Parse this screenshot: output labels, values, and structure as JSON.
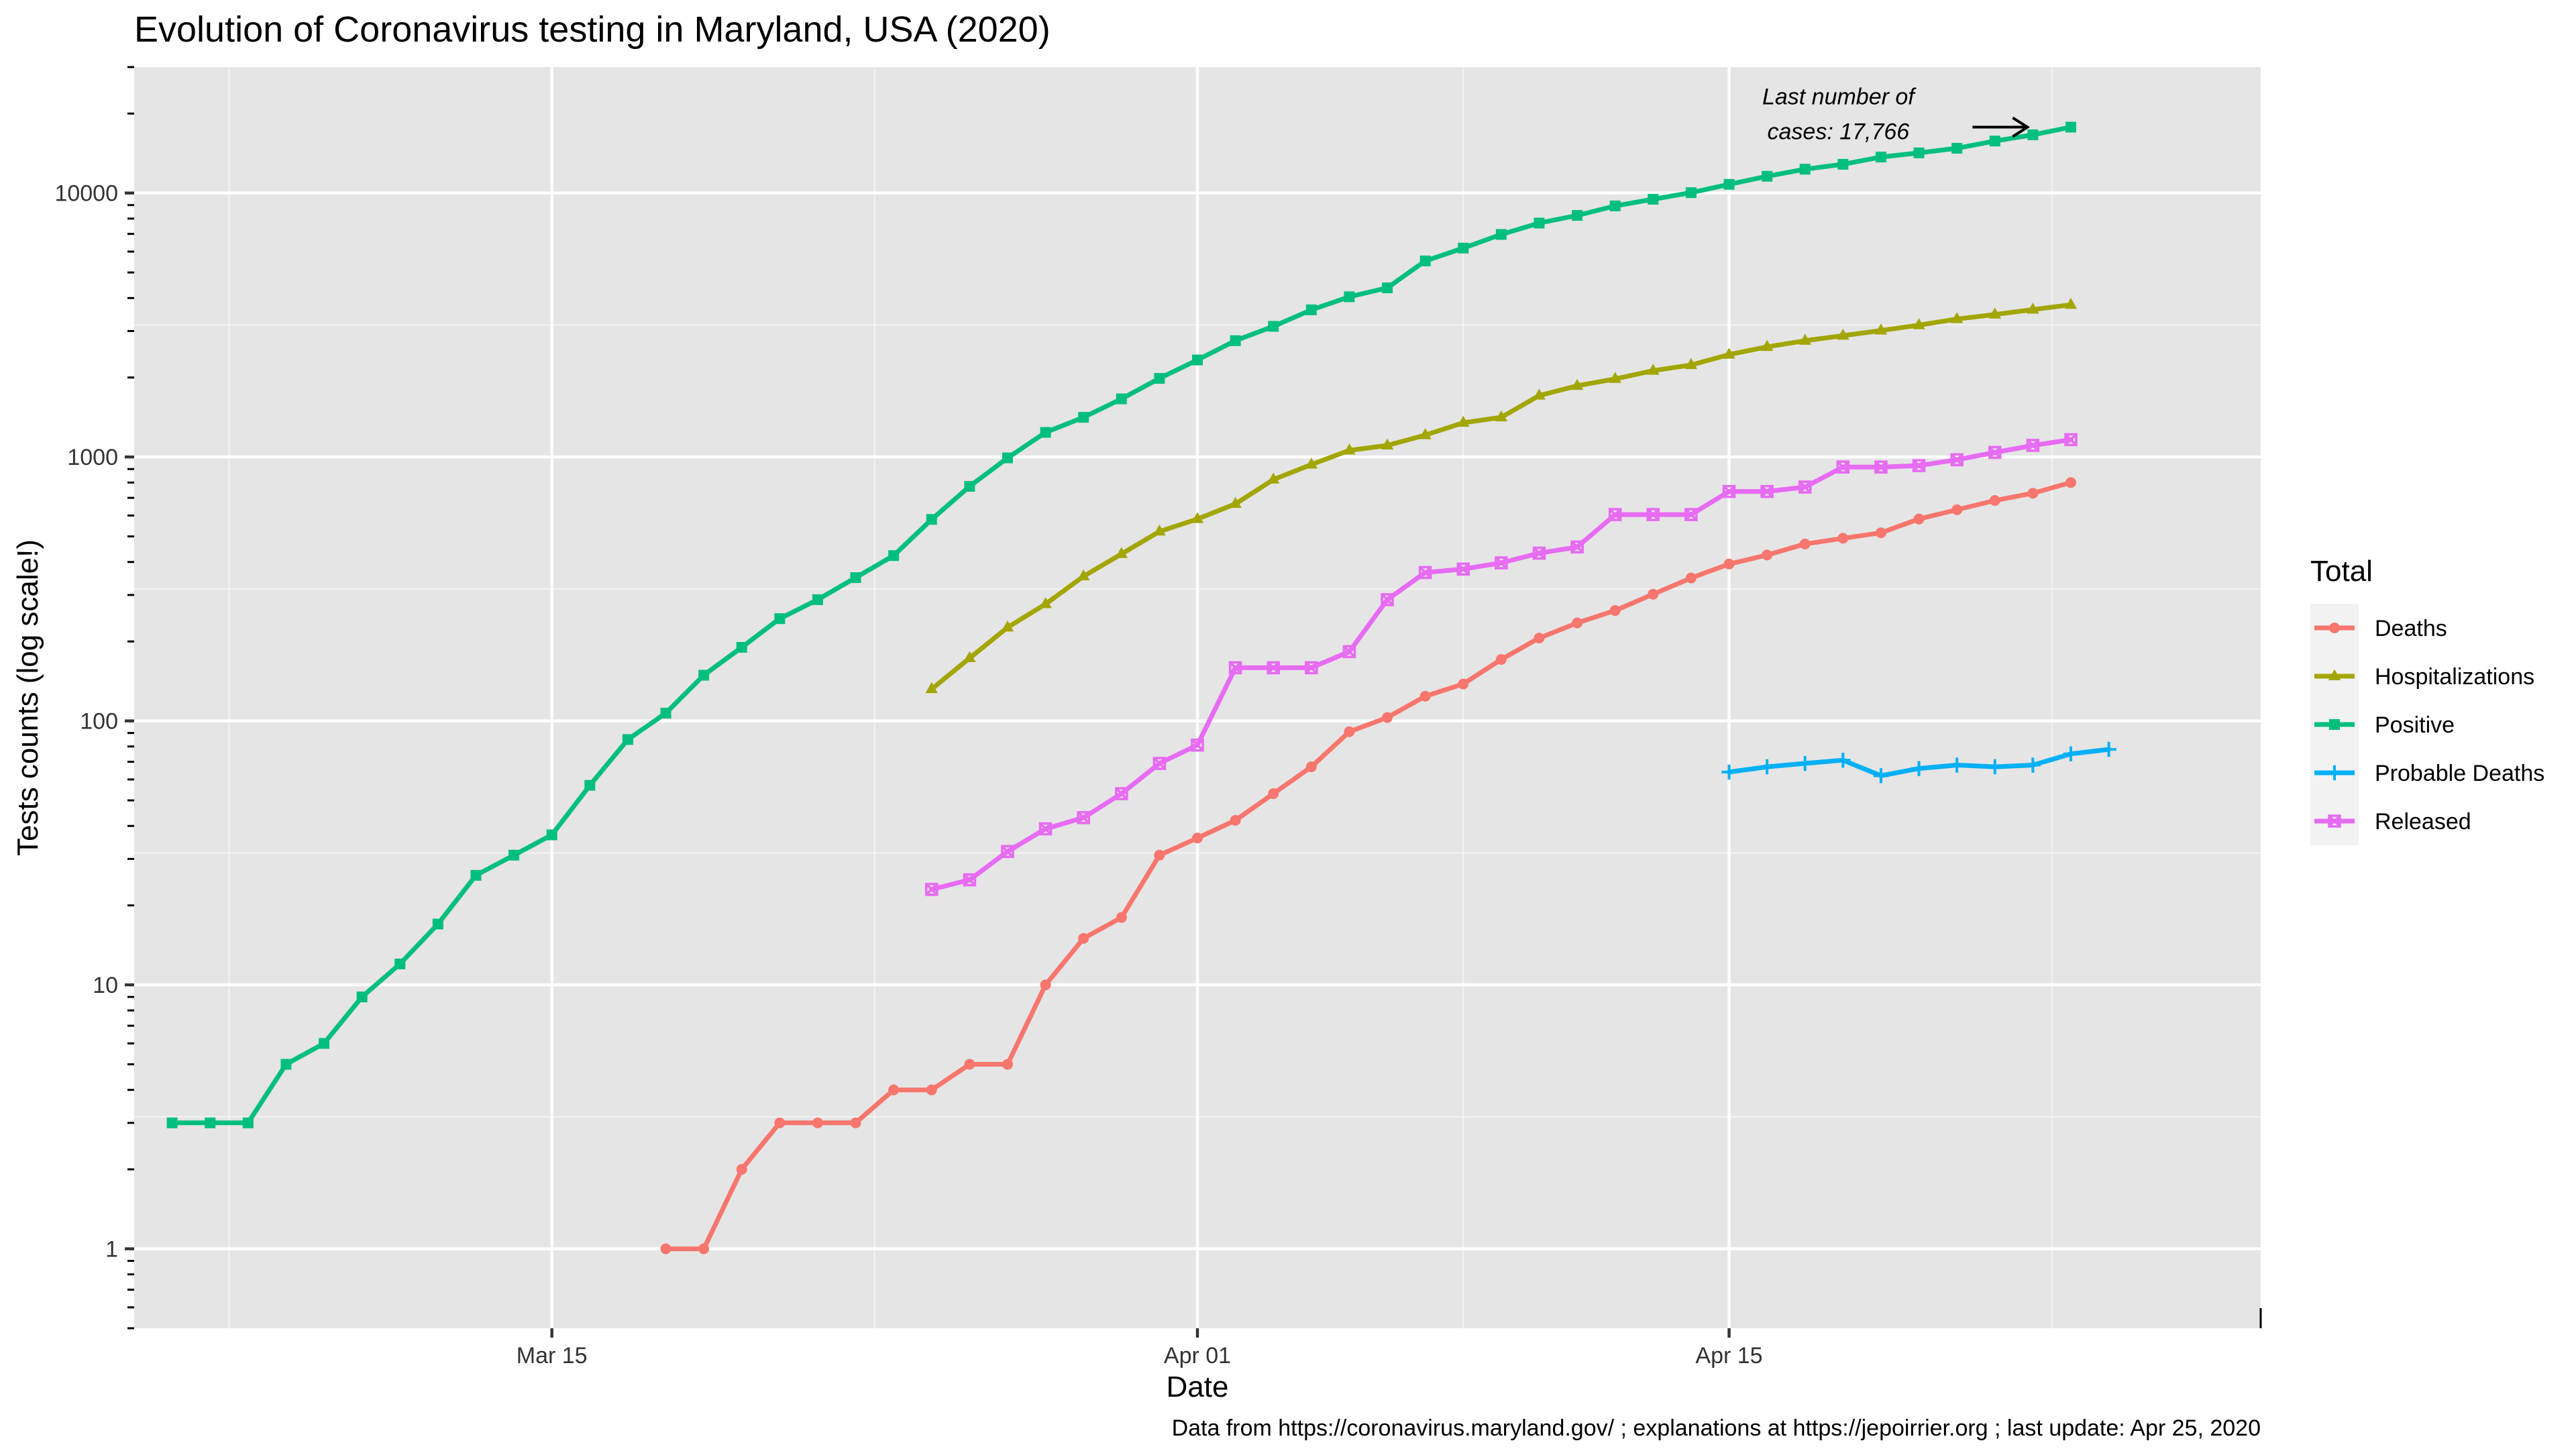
{
  "chart_data": {
    "type": "line",
    "title": "Evolution of Coronavirus testing in Maryland, USA (2020)",
    "xlabel": "Date",
    "ylabel": "Tests counts  (log scale!)",
    "caption": "Data from https://coronavirus.maryland.gov/ ; explanations at https://jepoirrier.org ; last update: Apr 25, 2020",
    "y_scale": "log10",
    "ylim": [
      0.5,
      30000
    ],
    "xlim": [
      "2020-03-04",
      "2020-04-29"
    ],
    "x_ticks": [
      {
        "date": "2020-03-15",
        "label": "Mar 15"
      },
      {
        "date": "2020-04-01",
        "label": "Apr 01"
      },
      {
        "date": "2020-04-15",
        "label": "Apr 15"
      }
    ],
    "y_ticks": [
      {
        "value": 1,
        "label": "1"
      },
      {
        "value": 10,
        "label": "10"
      },
      {
        "value": 100,
        "label": "100"
      },
      {
        "value": 1000,
        "label": "1000"
      },
      {
        "value": 10000,
        "label": "10000"
      }
    ],
    "grid": true,
    "legend": {
      "title": "Total",
      "position": "right",
      "entries": [
        "Deaths",
        "Hospitalizations",
        "Positive",
        "Probable Deaths",
        "Released"
      ]
    },
    "annotation": {
      "lines": [
        "Last number of",
        "cases: 17,766"
      ],
      "arrow_to_date": "2020-04-23",
      "arrow_value": 17766
    },
    "series": [
      {
        "name": "Deaths",
        "color": "#F8766D",
        "shape": "circle",
        "start": "2020-03-18",
        "values": [
          1,
          1,
          2,
          3,
          3,
          3,
          4,
          4,
          5,
          5,
          10,
          15,
          18,
          31,
          36,
          42,
          53,
          67,
          91,
          103,
          124,
          138,
          171,
          206,
          235,
          262,
          302,
          348,
          393,
          425,
          468,
          492,
          516,
          582,
          631,
          684,
          729,
          800
        ]
      },
      {
        "name": "Hospitalizations",
        "color": "#A3A500",
        "shape": "triangle",
        "start": "2020-03-25",
        "values": [
          132,
          173,
          226,
          277,
          353,
          429,
          522,
          582,
          664,
          821,
          936,
          1059,
          1106,
          1210,
          1348,
          1413,
          1709,
          1860,
          1976,
          2122,
          2230,
          2442,
          2612,
          2757,
          2881,
          3014,
          3157,
          3330,
          3466,
          3616,
          3772
        ]
      },
      {
        "name": "Positive",
        "color": "#00BF7D",
        "shape": "square",
        "start": "2020-03-05",
        "values": [
          3,
          3,
          3,
          5,
          6,
          9,
          12,
          17,
          26,
          31,
          37,
          57,
          85,
          107,
          149,
          190,
          244,
          288,
          349,
          423,
          580,
          774,
          992,
          1239,
          1413,
          1660,
          1985,
          2331,
          2758,
          3125,
          3609,
          4045,
          4371,
          5529,
          6185,
          6968,
          7694,
          8225,
          8936,
          9472,
          10032,
          10784,
          11572,
          12308,
          12847,
          13684,
          14193,
          14775,
          15737,
          16616,
          17766
        ]
      },
      {
        "name": "Probable Deaths",
        "color": "#00B0F6",
        "shape": "plus",
        "start": "2020-04-15",
        "values": [
          64,
          67,
          69,
          71,
          62,
          66,
          68,
          67,
          68,
          75,
          78
        ]
      },
      {
        "name": "Released",
        "color": "#E76BF3",
        "shape": "squarecross",
        "start": "2020-03-25",
        "values": [
          23,
          25,
          32,
          39,
          43,
          53,
          69,
          81,
          159,
          159,
          159,
          183,
          288,
          365,
          376,
          397,
          432,
          456,
          605,
          605,
          605,
          740,
          740,
          769,
          916,
          916,
          927,
          976,
          1040,
          1106,
          1163
        ]
      }
    ]
  }
}
